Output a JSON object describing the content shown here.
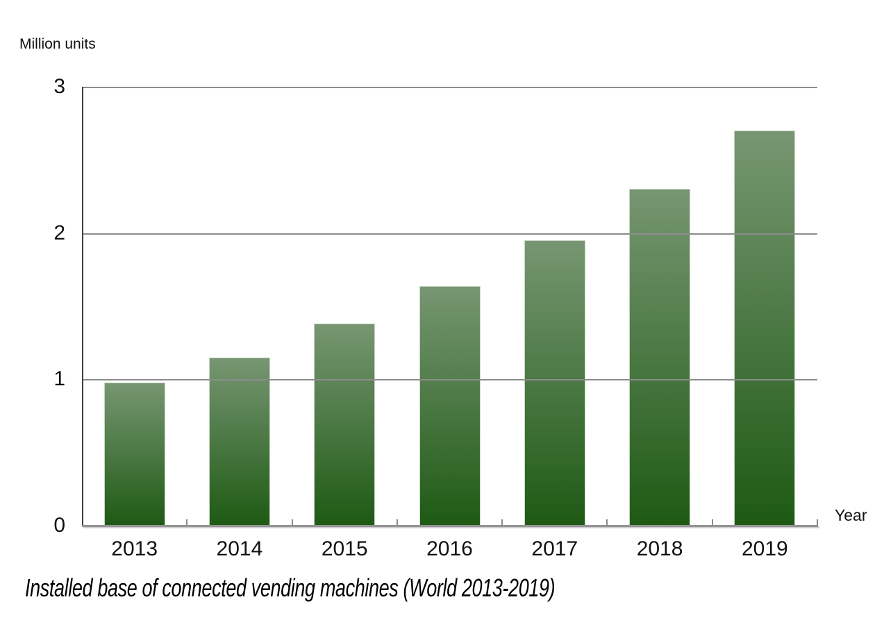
{
  "chart_data": {
    "type": "bar",
    "title": "Installed base of connected vending machines (World 2013-2019)",
    "ylabel": "Million units",
    "xlabel": "Year",
    "categories": [
      "2013",
      "2014",
      "2015",
      "2016",
      "2017",
      "2018",
      "2019"
    ],
    "values": [
      0.98,
      1.15,
      1.38,
      1.64,
      1.95,
      2.3,
      2.7
    ],
    "ylim": [
      0,
      3
    ],
    "yticks": [
      0,
      1,
      2,
      3
    ],
    "grid": "horizontal gridlines at 1, 2, 3 drawn over bars",
    "legend": "none",
    "colors": {
      "bar_gradient_top": "#779672",
      "bar_gradient_bottom": "#1e5a14",
      "bar_border": "#c9d6c4",
      "gridline": "#8c8c8c",
      "baseline": "#949494",
      "y_axis_line": "#3f3f3f",
      "text": "#111111"
    }
  }
}
